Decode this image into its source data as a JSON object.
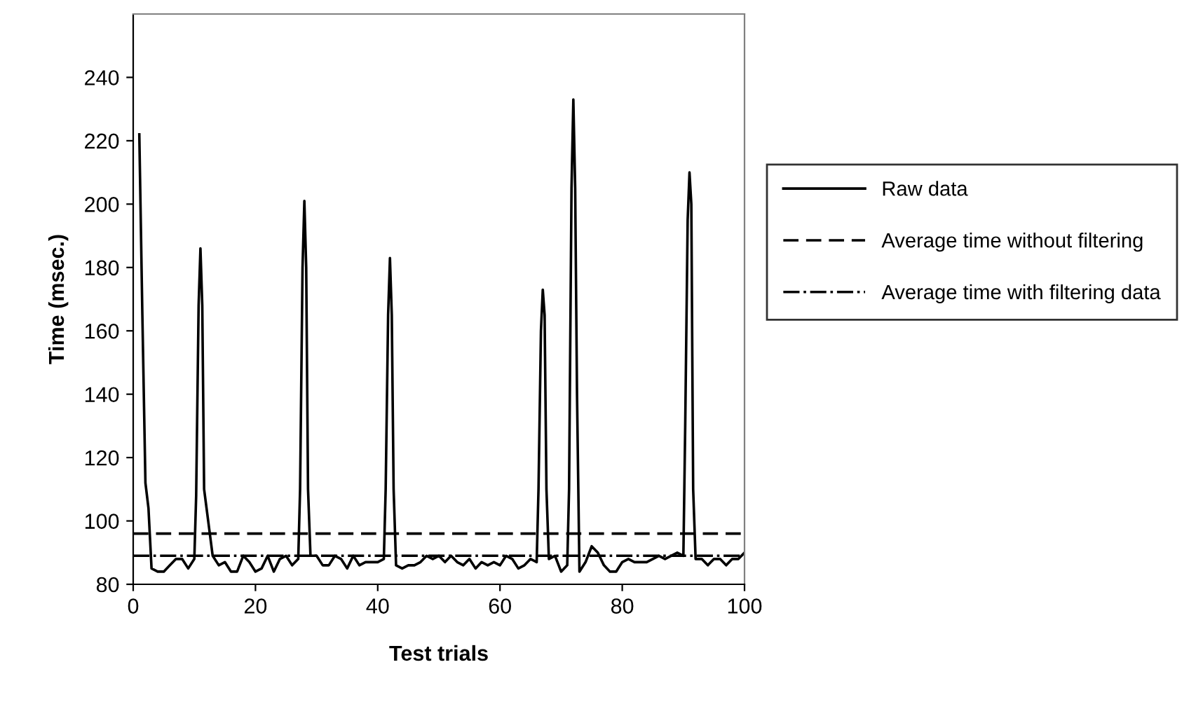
{
  "chart_data": {
    "type": "line",
    "xlabel": "Test trials",
    "ylabel": "Time (msec.)",
    "series": [
      {
        "name": "Raw data",
        "color": "#000000",
        "line_style": "solid",
        "x": [
          1,
          1.5,
          2,
          2.5,
          3,
          4,
          5,
          6,
          7,
          8,
          9,
          10,
          10.3,
          10.7,
          11,
          11.3,
          11.6,
          12,
          13,
          14,
          15,
          16,
          17,
          18,
          19,
          20,
          21,
          22,
          23,
          24,
          25,
          26,
          27,
          27.3,
          27.7,
          28,
          28.3,
          28.6,
          29,
          30,
          31,
          32,
          33,
          34,
          35,
          36,
          37,
          38,
          39,
          40,
          41,
          41.3,
          41.7,
          42,
          42.3,
          42.6,
          43,
          44,
          45,
          46,
          47,
          48,
          49,
          50,
          51,
          52,
          53,
          54,
          55,
          56,
          57,
          58,
          59,
          60,
          61,
          62,
          63,
          64,
          65,
          66,
          66.3,
          66.7,
          67,
          67.3,
          67.6,
          68,
          69,
          70,
          71,
          71.3,
          71.7,
          72,
          72.3,
          72.6,
          73,
          74,
          75,
          76,
          77,
          78,
          79,
          80,
          81,
          82,
          83,
          84,
          85,
          86,
          87,
          88,
          89,
          90,
          90.3,
          90.7,
          91,
          91.3,
          91.6,
          92,
          93,
          94,
          95,
          96,
          97,
          98,
          99,
          100
        ],
        "values": [
          222,
          165,
          112,
          104,
          85,
          84,
          84,
          86,
          88,
          88,
          85,
          88,
          108,
          168,
          186,
          168,
          110,
          104,
          89,
          86,
          87,
          84,
          84,
          89,
          87,
          84,
          85,
          89,
          84,
          88,
          89,
          86,
          88,
          110,
          180,
          201,
          180,
          110,
          89,
          89,
          86,
          86,
          89,
          88,
          85,
          89,
          86,
          87,
          87,
          87,
          88,
          110,
          165,
          183,
          165,
          110,
          86,
          85,
          86,
          86,
          87,
          89,
          88,
          89,
          87,
          89,
          87,
          86,
          88,
          85,
          87,
          86,
          87,
          86,
          89,
          88,
          85,
          86,
          88,
          87,
          110,
          160,
          173,
          165,
          110,
          88,
          89,
          84,
          86,
          110,
          205,
          233,
          205,
          140,
          84,
          87,
          92,
          90,
          86,
          84,
          84,
          87,
          88,
          87,
          87,
          87,
          88,
          89,
          88,
          89,
          90,
          89,
          130,
          195,
          210,
          200,
          110,
          88,
          88,
          86,
          88,
          88,
          86,
          88,
          88,
          90
        ]
      }
    ],
    "ref_lines": [
      {
        "axis": "y",
        "value": 96,
        "label": "Average time without filtering",
        "color": "#000000",
        "line_style": "dashed"
      },
      {
        "axis": "y",
        "value": 89,
        "label": "Average time with filtering data",
        "color": "#000000",
        "line_style": "dashdot"
      }
    ],
    "xlim": [
      0,
      100
    ],
    "xticks": [
      0,
      20,
      40,
      60,
      80,
      100
    ],
    "ylim": [
      80,
      260
    ],
    "yticks": [
      80,
      100,
      120,
      140,
      160,
      180,
      200,
      220,
      240
    ],
    "grid": false,
    "legend": "right",
    "marker": "none"
  }
}
